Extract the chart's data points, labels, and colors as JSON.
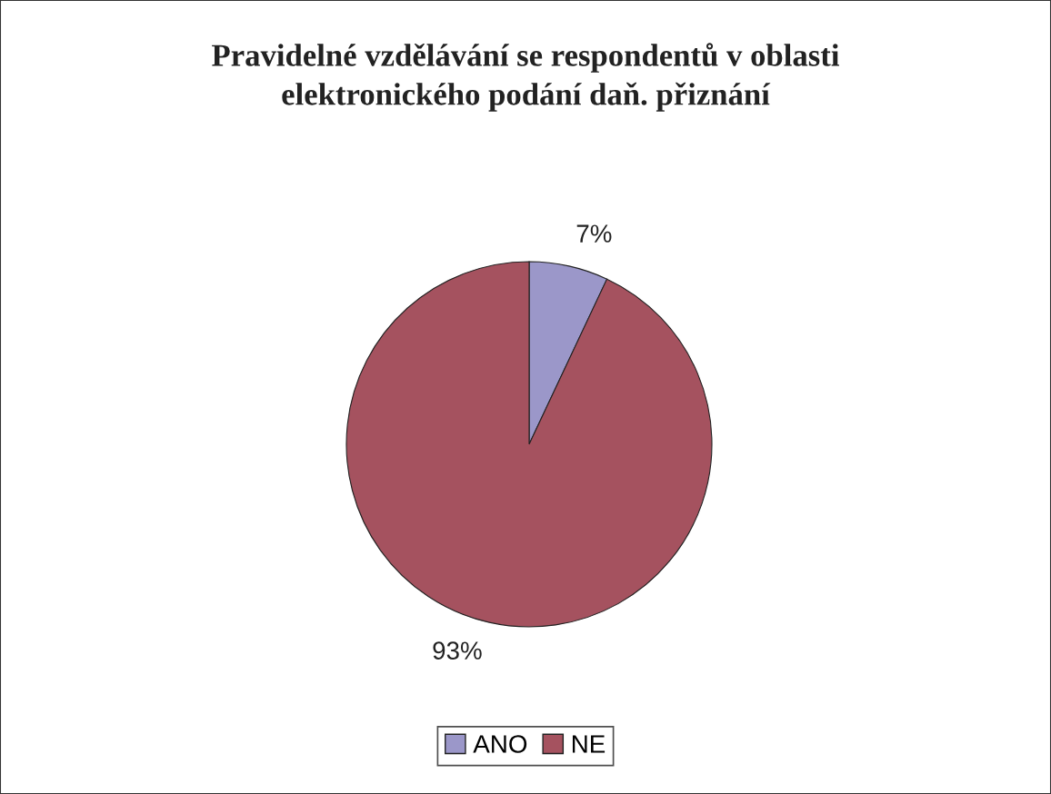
{
  "chart_data": {
    "type": "pie",
    "title": "Pravidelné vzdělávání se respondentů v oblasti\nelektronického podání daň. přiznání",
    "categories": [
      "ANO",
      "NE"
    ],
    "values": [
      7,
      93
    ],
    "colors": [
      "#9b97c9",
      "#a5525f"
    ],
    "value_labels": [
      "7%",
      "93%"
    ],
    "legend": "bottom"
  }
}
